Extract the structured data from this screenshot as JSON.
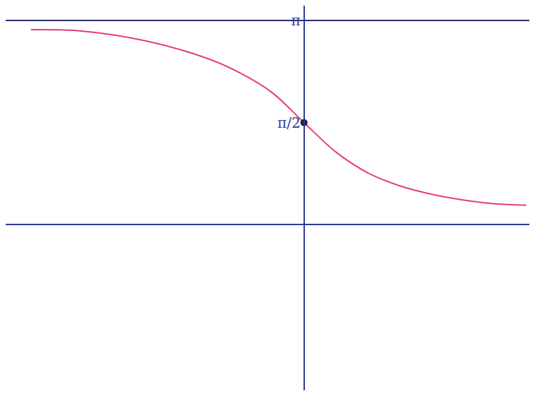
{
  "chart_data": {
    "type": "line",
    "xlim": [
      -4.7,
      3.55
    ],
    "ylim": [
      -2.55,
      3.37
    ],
    "yticks": [
      {
        "value": 3.1416,
        "label": "π"
      },
      {
        "value": 1.5708,
        "label": "π/2"
      }
    ],
    "tick_labels": "y",
    "grid": false,
    "series": [
      {
        "type": "line",
        "marker": "none",
        "line_style": "solid",
        "color": "#e63e74",
        "x": [
          -4.3,
          -3.5,
          -2.5,
          -1.5,
          -1.0,
          -0.5,
          0,
          0.5,
          1.0,
          1.5,
          2.0,
          2.5,
          3.0,
          3.5
        ],
        "values": [
          3.0,
          2.98,
          2.83,
          2.55,
          2.33,
          2.03,
          1.57,
          1.12,
          0.8,
          0.6,
          0.47,
          0.38,
          0.32,
          0.3
        ]
      },
      {
        "type": "line",
        "marker": "none",
        "line_style": "solid",
        "color": "#2a2e6e",
        "x": [
          -4.7,
          3.55
        ],
        "values": [
          3.1416,
          3.1416
        ]
      },
      {
        "type": "scatter",
        "marker": "circle",
        "color": "#1f1f3a",
        "x": [
          0
        ],
        "values": [
          1.5708
        ]
      }
    ]
  }
}
